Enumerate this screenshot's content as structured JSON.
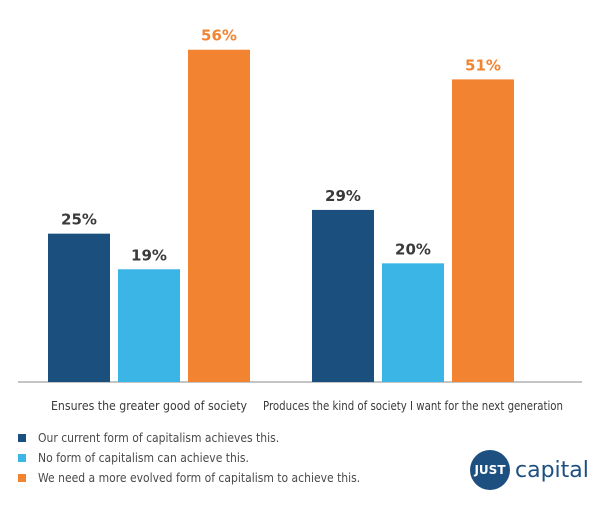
{
  "chart_data": {
    "type": "bar",
    "categories": [
      "Ensures the greater good of society",
      "Produces the kind of society I want for the next generation"
    ],
    "series": [
      {
        "name": "Our current form of capitalism achieves this.",
        "values": [
          25,
          29
        ],
        "labels": [
          "25%",
          "29%"
        ],
        "color": "#1b4f7e"
      },
      {
        "name": "No form of capitalism can achieve this.",
        "values": [
          19,
          20
        ],
        "labels": [
          "19%",
          "20%"
        ],
        "color": "#3bb4e6"
      },
      {
        "name": "We need a more evolved form of capitalism to achieve this.",
        "values": [
          56,
          51
        ],
        "labels": [
          "56%",
          "51%"
        ],
        "color": "#f28331"
      }
    ],
    "ylim": [
      0,
      60
    ],
    "grid": false,
    "legend": "bottom-left"
  },
  "label_colors": [
    "#3a3a3a",
    "#3a3a3a",
    "#f28331"
  ],
  "logo": {
    "badge": "JUST",
    "text": "capital"
  }
}
